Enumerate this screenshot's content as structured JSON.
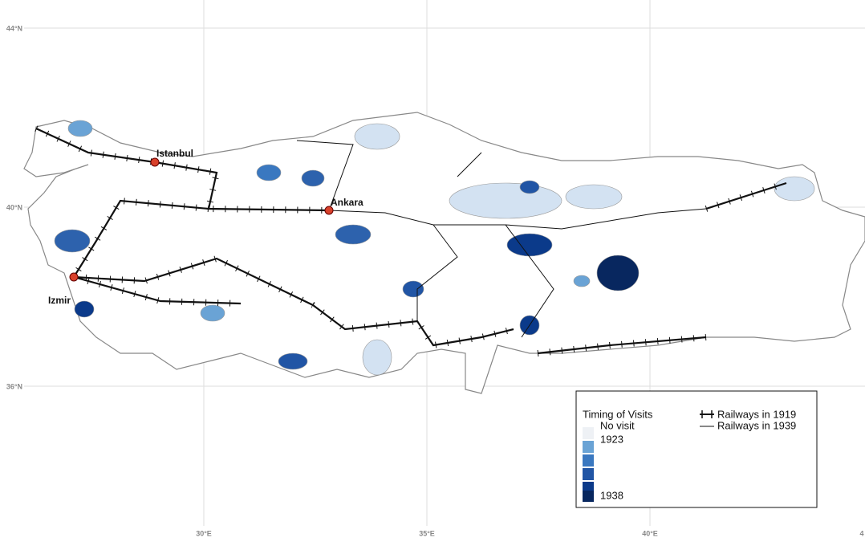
{
  "map": {
    "lat_labels": [
      "44°N",
      "40°N",
      "36°N"
    ],
    "lon_labels": [
      "30°E",
      "35°E",
      "40°E",
      "4"
    ],
    "cities": [
      {
        "label": "Istanbul"
      },
      {
        "label": "Ankara"
      },
      {
        "label": "Izmir"
      }
    ],
    "legend": {
      "title": "Timing of Visits",
      "scale_labels": [
        "No visit",
        "1923",
        "1938"
      ],
      "railways": [
        "Railways in 1919",
        "Railways in 1939"
      ]
    }
  }
}
